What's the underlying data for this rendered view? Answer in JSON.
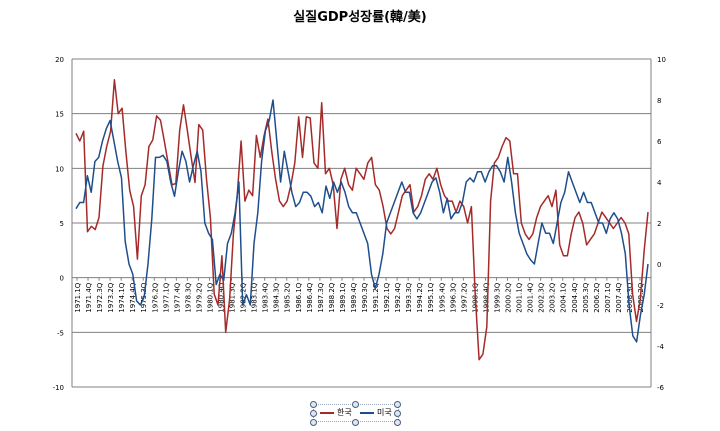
{
  "chart_data": {
    "type": "line",
    "title": "실질GDP성장률(韓/美)",
    "xlabel": "",
    "ylabel": "",
    "ylim": [
      -10,
      20
    ],
    "y2lim": [
      -6,
      10
    ],
    "yticks": [
      -10,
      -5,
      0,
      5,
      10,
      15,
      20
    ],
    "y2ticks": [
      -6,
      -4,
      -2,
      0,
      2,
      4,
      6,
      8,
      10
    ],
    "grid": true,
    "legend_position": "bottom",
    "tick_labels": [
      "1971.1Q",
      "1971.4Q",
      "1972.3Q",
      "1973.2Q",
      "1974.1Q",
      "1974.4Q",
      "1975.3Q",
      "1976.2Q",
      "1977.1Q",
      "1977.4Q",
      "1978.3Q",
      "1979.2Q",
      "1980.1Q",
      "1980.4Q",
      "1981.3Q",
      "1982.2Q",
      "1983.1Q",
      "1983.4Q",
      "1984.3Q",
      "1985.2Q",
      "1986.1Q",
      "1986.4Q",
      "1987.3Q",
      "1988.2Q",
      "1989.1Q",
      "1989.4Q",
      "1990.3Q",
      "1991.2Q",
      "1992.1Q",
      "1992.4Q",
      "1993.3Q",
      "1994.2Q",
      "1995.1Q",
      "1995.4Q",
      "1996.3Q",
      "1997.2Q",
      "1998.1Q",
      "1998.4Q",
      "1999.3Q",
      "2000.2Q",
      "2001.1Q",
      "2001.4Q",
      "2002.3Q",
      "2003.2Q",
      "2004.1Q",
      "2004.4Q",
      "2005.3Q",
      "2006.2Q",
      "2007.1Q",
      "2007.4Q",
      "2008.3Q",
      "2009.2Q"
    ],
    "x_start": "1971.1Q",
    "x_end": "2009.4Q",
    "series": [
      {
        "name": "한국",
        "axis": "left",
        "color": "#a52a2a",
        "values": [
          13.2,
          12.5,
          13.4,
          4.2,
          4.7,
          4.4,
          5.5,
          10.2,
          12.0,
          13.4,
          18.1,
          15.0,
          15.5,
          11.5,
          8.0,
          6.5,
          1.7,
          7.5,
          8.5,
          12.0,
          12.6,
          14.8,
          14.4,
          12.5,
          10.5,
          8.5,
          8.6,
          13.5,
          15.8,
          13.5,
          11.0,
          8.7,
          14.0,
          13.5,
          9.0,
          5.5,
          -1.5,
          -2.5,
          2.0,
          -5.0,
          -2.0,
          4.0,
          7.5,
          12.5,
          7.0,
          8.0,
          7.5,
          13.0,
          11.0,
          13.0,
          14.5,
          11.5,
          9.0,
          7.0,
          6.5,
          7.0,
          8.5,
          10.5,
          14.7,
          11.0,
          14.7,
          14.6,
          10.5,
          10.0,
          16.0,
          9.5,
          10.0,
          8.5,
          4.5,
          9.0,
          10.0,
          8.5,
          8.0,
          10.0,
          9.5,
          9.0,
          10.5,
          11.0,
          8.5,
          8.0,
          6.5,
          4.5,
          4.0,
          4.5,
          6.0,
          7.5,
          8.0,
          8.5,
          6.0,
          6.5,
          7.5,
          9.0,
          9.5,
          9.0,
          10.0,
          8.5,
          7.5,
          7.0,
          7.0,
          6.0,
          7.0,
          6.5,
          5.0,
          6.5,
          -1.5,
          -7.5,
          -7.0,
          -4.5,
          7.0,
          10.5,
          11.0,
          12.0,
          12.8,
          12.5,
          9.5,
          9.5,
          5.0,
          4.0,
          3.5,
          4.0,
          5.5,
          6.5,
          7.0,
          7.5,
          6.5,
          8.0,
          3.0,
          2.0,
          2.0,
          4.0,
          5.5,
          6.0,
          5.0,
          3.0,
          3.5,
          4.0,
          5.0,
          6.0,
          5.5,
          5.0,
          4.5,
          5.0,
          5.5,
          5.0,
          4.0,
          -1.5,
          -4.0,
          -2.0,
          2.5,
          6.0
        ]
      },
      {
        "name": "미국",
        "axis": "right",
        "color": "#1f4e8c",
        "values": [
          2.7,
          3.0,
          3.0,
          4.3,
          3.5,
          5.0,
          5.2,
          6.0,
          6.6,
          7.0,
          6.0,
          5.0,
          4.2,
          1.1,
          0.0,
          -0.5,
          -1.8,
          -2.0,
          -1.6,
          0.0,
          2.2,
          5.2,
          5.2,
          5.3,
          5.0,
          4.0,
          3.3,
          4.5,
          5.5,
          5.0,
          4.0,
          4.8,
          5.5,
          4.5,
          2.0,
          1.5,
          1.2,
          -1.0,
          -0.5,
          -0.8,
          1.0,
          1.5,
          2.5,
          4.0,
          -2.0,
          -1.5,
          -2.0,
          1.0,
          2.5,
          5.0,
          6.5,
          7.0,
          8.0,
          6.0,
          4.0,
          5.5,
          4.5,
          3.5,
          2.8,
          3.0,
          3.5,
          3.5,
          3.3,
          2.8,
          3.0,
          2.5,
          3.8,
          3.2,
          4.0,
          3.5,
          4.0,
          3.5,
          2.8,
          2.5,
          2.5,
          2.0,
          1.5,
          1.0,
          -0.5,
          -1.2,
          -0.5,
          0.5,
          2.0,
          2.5,
          3.0,
          3.5,
          4.0,
          3.5,
          3.5,
          2.5,
          2.2,
          2.5,
          3.0,
          3.5,
          4.0,
          4.2,
          3.5,
          2.5,
          3.2,
          2.2,
          2.5,
          2.5,
          3.0,
          4.0,
          4.2,
          4.0,
          4.5,
          4.5,
          4.0,
          4.5,
          4.8,
          4.8,
          4.5,
          4.0,
          5.2,
          4.0,
          2.5,
          1.5,
          1.0,
          0.5,
          0.2,
          0.0,
          1.0,
          2.0,
          1.5,
          1.5,
          1.0,
          2.0,
          3.0,
          3.5,
          4.5,
          4.0,
          3.5,
          3.0,
          3.5,
          3.0,
          3.0,
          2.5,
          2.0,
          2.0,
          1.5,
          2.2,
          2.5,
          2.2,
          1.5,
          0.5,
          -2.0,
          -3.5,
          -3.8,
          -2.5,
          -1.5,
          0.0
        ]
      }
    ]
  }
}
